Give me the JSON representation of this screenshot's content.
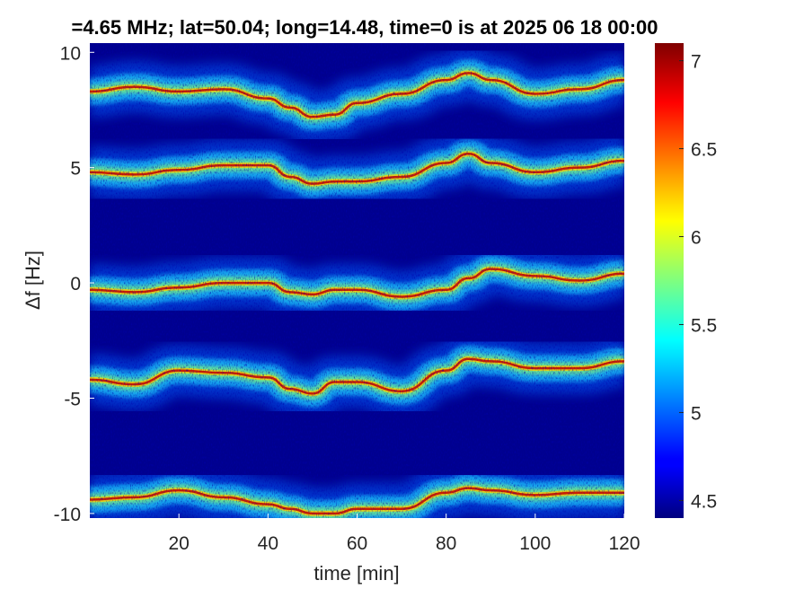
{
  "chart_data": {
    "type": "heatmap",
    "title": "=4.65 MHz;  lat=50.04; long=14.48, time=0 is at 2025 06 18 00:00",
    "xlabel": "time [min]",
    "ylabel": "Δf [Hz]",
    "xlim": [
      0,
      120
    ],
    "ylim": [
      -10.2,
      10.4
    ],
    "x_ticks": [
      20,
      40,
      60,
      80,
      100,
      120
    ],
    "y_ticks": [
      -10,
      -5,
      0,
      5,
      10
    ],
    "y_tick_labels": [
      "-10",
      "-5",
      "0",
      "5",
      "10"
    ],
    "colorbar": {
      "range": [
        4.4,
        7.1
      ],
      "ticks": [
        4.5,
        5,
        5.5,
        6,
        6.5,
        7
      ],
      "tick_labels": [
        "4.5",
        "5",
        "5.5",
        "6",
        "6.5",
        "7"
      ],
      "colormap": "jet"
    },
    "background_color": "#00008f",
    "series": [
      {
        "x": [
          0,
          10,
          20,
          30,
          40,
          45,
          50,
          55,
          60,
          70,
          80,
          85,
          90,
          100,
          110,
          120
        ],
        "y": [
          8.3,
          8.5,
          8.3,
          8.4,
          8.0,
          7.6,
          7.2,
          7.3,
          7.8,
          8.2,
          8.8,
          9.1,
          8.8,
          8.2,
          8.4,
          8.8
        ]
      },
      {
        "x": [
          0,
          10,
          20,
          30,
          40,
          45,
          50,
          55,
          60,
          70,
          80,
          85,
          90,
          100,
          110,
          120
        ],
        "y": [
          4.8,
          4.7,
          4.9,
          5.1,
          5.1,
          4.6,
          4.3,
          4.4,
          4.4,
          4.6,
          5.2,
          5.6,
          5.2,
          4.8,
          5.0,
          5.3
        ]
      },
      {
        "x": [
          0,
          10,
          20,
          30,
          40,
          45,
          50,
          55,
          60,
          70,
          80,
          85,
          90,
          100,
          110,
          120
        ],
        "y": [
          -0.3,
          -0.4,
          -0.2,
          0.0,
          0.0,
          -0.4,
          -0.5,
          -0.3,
          -0.3,
          -0.6,
          -0.3,
          0.2,
          0.6,
          0.3,
          0.1,
          0.4
        ]
      },
      {
        "x": [
          0,
          10,
          20,
          30,
          40,
          45,
          50,
          55,
          60,
          70,
          80,
          85,
          90,
          100,
          110,
          120
        ],
        "y": [
          -4.2,
          -4.4,
          -3.8,
          -3.9,
          -4.1,
          -4.6,
          -4.8,
          -4.3,
          -4.3,
          -4.7,
          -3.8,
          -3.3,
          -3.4,
          -3.7,
          -3.7,
          -3.4
        ]
      },
      {
        "x": [
          0,
          10,
          20,
          30,
          40,
          45,
          50,
          55,
          60,
          70,
          80,
          85,
          90,
          100,
          110,
          120
        ],
        "y": [
          -9.4,
          -9.3,
          -9.0,
          -9.3,
          -9.6,
          -9.8,
          -10.0,
          -10.0,
          -9.8,
          -9.8,
          -9.1,
          -8.9,
          -9.0,
          -9.2,
          -9.1,
          -9.1
        ]
      }
    ]
  }
}
